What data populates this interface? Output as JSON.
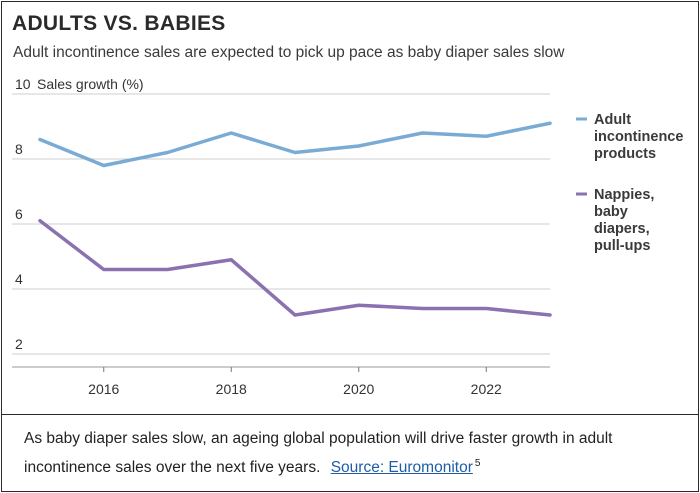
{
  "colors": {
    "adult": "#7aabd5",
    "nappies": "#8a72b0",
    "grid": "#cfcfcf",
    "text": "#333333"
  },
  "chart_data": {
    "type": "line",
    "title": "ADULTS VS. BABIES",
    "subtitle": "Adult incontinence sales are expected to pick up pace as baby diaper sales slow",
    "ylabel": "Sales growth (%)",
    "xlabel": "",
    "ylim": [
      1.6,
      10
    ],
    "xlim": [
      2015,
      2023
    ],
    "yticks": [
      2,
      4,
      6,
      8,
      10
    ],
    "ytick_labels": [
      "2",
      "4",
      "6",
      "8",
      "10"
    ],
    "xticks": [
      2016,
      2018,
      2020,
      2022
    ],
    "xtick_labels": [
      "2016",
      "2018",
      "2020",
      "2022"
    ],
    "x": [
      2015,
      2016,
      2017,
      2018,
      2019,
      2020,
      2021,
      2022,
      2023
    ],
    "series": [
      {
        "name": "Adult incontinence products",
        "label_lines": [
          "Adult",
          "incontinence",
          "products"
        ],
        "values": [
          8.6,
          7.8,
          8.2,
          8.8,
          8.2,
          8.4,
          8.8,
          8.7,
          9.1
        ]
      },
      {
        "name": "Nappies, baby diapers, pull-ups",
        "label_lines": [
          "Nappies,",
          "baby",
          "diapers,",
          "pull-ups"
        ],
        "values": [
          6.1,
          4.6,
          4.6,
          4.9,
          3.2,
          3.5,
          3.4,
          3.4,
          3.2
        ]
      }
    ]
  },
  "caption": {
    "text": "As baby diaper sales slow, an ageing global population will drive faster growth in adult incontinence sales over the next five years.",
    "source_label": "Source: Euromonitor",
    "footnote": "5"
  }
}
